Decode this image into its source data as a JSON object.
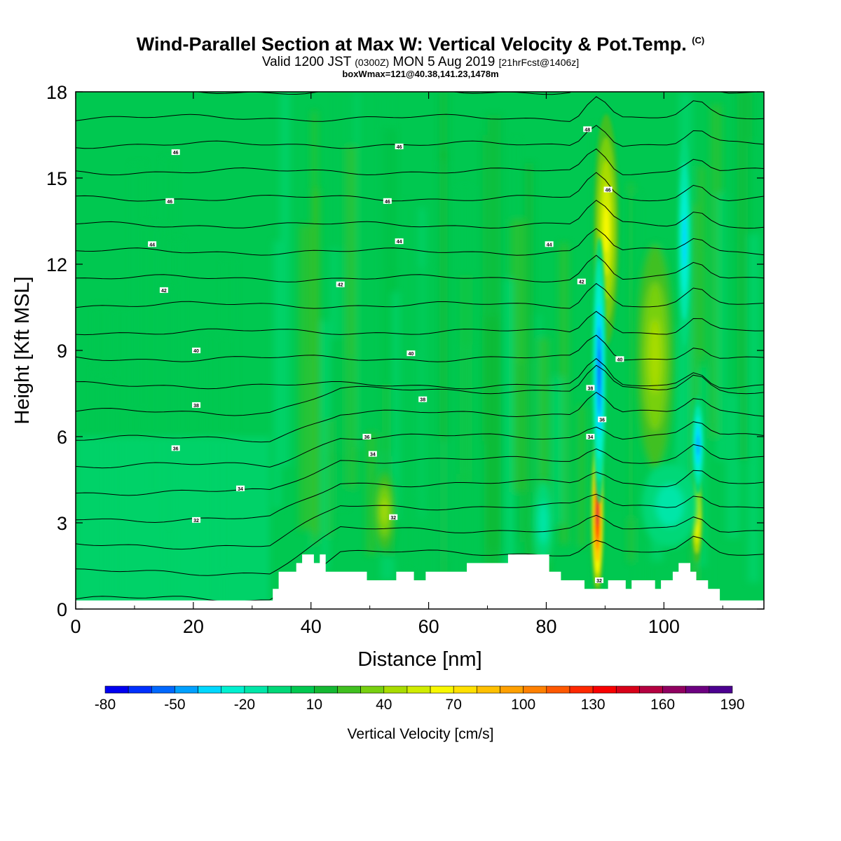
{
  "title": {
    "main": "Wind-Parallel Section at Max W: Vertical Velocity & Pot.Temp.",
    "copyright": "(C)",
    "valid_prefix": "Valid 1200 JST",
    "utc": "(0300Z)",
    "valid_date": "MON 5 Aug 2019",
    "forecast": "[21hrFcst@1406z]",
    "box": "boxWmax=121@40.38,141.23,1478m"
  },
  "chart_data": {
    "type": "heatmap",
    "xlabel": "Distance [nm]",
    "ylabel": "Height [Kft MSL]",
    "xlim": [
      0,
      117
    ],
    "ylim": [
      0,
      18
    ],
    "x_ticks": [
      "0",
      "20",
      "40",
      "60",
      "80",
      "100"
    ],
    "y_ticks": [
      "0",
      "3",
      "6",
      "9",
      "12",
      "15",
      "18"
    ],
    "colorbar": {
      "label": "Vertical Velocity [cm/s]",
      "tick_labels": [
        "-80",
        "-50",
        "-20",
        "10",
        "40",
        "70",
        "100",
        "130",
        "160",
        "190"
      ],
      "levels": [
        -80,
        -70,
        -60,
        -50,
        -40,
        -30,
        -20,
        -10,
        0,
        10,
        20,
        30,
        40,
        50,
        60,
        70,
        80,
        90,
        100,
        110,
        120,
        130,
        140,
        150,
        160,
        170,
        180,
        190
      ],
      "colors": [
        "#0000f0",
        "#0030ff",
        "#0068ff",
        "#00a0ff",
        "#00d8ff",
        "#00f0d0",
        "#00e6a8",
        "#00d878",
        "#00c850",
        "#14b832",
        "#40c020",
        "#78d010",
        "#a8dc00",
        "#d0ec00",
        "#f8f800",
        "#ffe000",
        "#ffc000",
        "#ffa000",
        "#ff8000",
        "#ff5800",
        "#ff2800",
        "#f80000",
        "#d80018",
        "#b40040",
        "#900060",
        "#6c0080",
        "#4c0090"
      ]
    },
    "terrain": [
      [
        0,
        0.3
      ],
      [
        33.5,
        0.3
      ],
      [
        33.5,
        0.7
      ],
      [
        34.5,
        0.7
      ],
      [
        34.5,
        1.3
      ],
      [
        37.5,
        1.3
      ],
      [
        37.5,
        1.6
      ],
      [
        38.5,
        1.6
      ],
      [
        38.5,
        1.9
      ],
      [
        40.5,
        1.9
      ],
      [
        40.5,
        1.6
      ],
      [
        41.5,
        1.6
      ],
      [
        41.5,
        1.9
      ],
      [
        42.5,
        1.9
      ],
      [
        42.5,
        1.3
      ],
      [
        49.5,
        1.3
      ],
      [
        49.5,
        1.0
      ],
      [
        54.5,
        1.0
      ],
      [
        54.5,
        1.3
      ],
      [
        57.5,
        1.3
      ],
      [
        57.5,
        1.0
      ],
      [
        59.5,
        1.0
      ],
      [
        59.5,
        1.3
      ],
      [
        66.5,
        1.3
      ],
      [
        66.5,
        1.6
      ],
      [
        73.5,
        1.6
      ],
      [
        73.5,
        1.9
      ],
      [
        80.5,
        1.9
      ],
      [
        80.5,
        1.3
      ],
      [
        82.5,
        1.3
      ],
      [
        82.5,
        1.0
      ],
      [
        86.5,
        1.0
      ],
      [
        86.5,
        0.7
      ],
      [
        90.5,
        0.7
      ],
      [
        90.5,
        1.0
      ],
      [
        93.5,
        1.0
      ],
      [
        93.5,
        0.7
      ],
      [
        94.5,
        0.7
      ],
      [
        94.5,
        1.0
      ],
      [
        98.5,
        1.0
      ],
      [
        98.5,
        0.7
      ],
      [
        99.5,
        0.7
      ],
      [
        99.5,
        1.0
      ],
      [
        101.5,
        1.0
      ],
      [
        101.5,
        1.3
      ],
      [
        102.5,
        1.3
      ],
      [
        102.5,
        1.6
      ],
      [
        104.5,
        1.6
      ],
      [
        104.5,
        1.3
      ],
      [
        105.5,
        1.3
      ],
      [
        105.5,
        1.0
      ],
      [
        107.5,
        1.0
      ],
      [
        107.5,
        0.7
      ],
      [
        109.5,
        0.7
      ],
      [
        109.5,
        0.3
      ],
      [
        117,
        0.3
      ]
    ],
    "updraft_cores": [
      {
        "x": 88.7,
        "y": 3.3,
        "w_max": 150
      },
      {
        "x": 90.2,
        "y": 13.2,
        "w_max": 60
      },
      {
        "x": 105.6,
        "y": 3.2,
        "w_max": 70
      },
      {
        "x": 98.5,
        "y": 8.8,
        "w_max": 40
      },
      {
        "x": 52.5,
        "y": 3.4,
        "w_max": 40
      }
    ],
    "downdraft_cores": [
      {
        "x": 89.0,
        "y": 8.3,
        "w_min": -60
      },
      {
        "x": 105.8,
        "y": 5.7,
        "w_min": -50
      },
      {
        "x": 103.5,
        "y": 12.8,
        "w_min": -40
      },
      {
        "x": 79.5,
        "y": 3.0,
        "w_min": -20
      }
    ],
    "theta_contours": [
      30,
      31,
      32,
      33,
      34,
      35,
      36,
      37,
      38,
      39,
      40,
      41,
      42,
      43,
      44,
      45,
      46,
      47,
      48,
      49
    ],
    "contour_labels": [
      {
        "text": "46",
        "x": 17,
        "y": 15.9
      },
      {
        "text": "46",
        "x": 16,
        "y": 14.2
      },
      {
        "text": "44",
        "x": 13,
        "y": 12.7
      },
      {
        "text": "42",
        "x": 15,
        "y": 11.1
      },
      {
        "text": "40",
        "x": 20.5,
        "y": 9.0
      },
      {
        "text": "38",
        "x": 20.5,
        "y": 7.1
      },
      {
        "text": "36",
        "x": 17,
        "y": 5.6
      },
      {
        "text": "34",
        "x": 28,
        "y": 4.2
      },
      {
        "text": "32",
        "x": 20.5,
        "y": 3.1
      },
      {
        "text": "46",
        "x": 55,
        "y": 16.1
      },
      {
        "text": "46",
        "x": 53,
        "y": 14.2
      },
      {
        "text": "44",
        "x": 55,
        "y": 12.8
      },
      {
        "text": "42",
        "x": 45,
        "y": 11.3
      },
      {
        "text": "40",
        "x": 57,
        "y": 8.9
      },
      {
        "text": "38",
        "x": 59,
        "y": 7.3
      },
      {
        "text": "36",
        "x": 49.5,
        "y": 6.0
      },
      {
        "text": "34",
        "x": 50.5,
        "y": 5.4
      },
      {
        "text": "32",
        "x": 54,
        "y": 3.2
      },
      {
        "text": "48",
        "x": 87,
        "y": 16.7
      },
      {
        "text": "46",
        "x": 90.5,
        "y": 14.6
      },
      {
        "text": "44",
        "x": 80.5,
        "y": 12.7
      },
      {
        "text": "42",
        "x": 86,
        "y": 11.4
      },
      {
        "text": "40",
        "x": 92.5,
        "y": 8.7
      },
      {
        "text": "38",
        "x": 87.5,
        "y": 7.7
      },
      {
        "text": "36",
        "x": 89.5,
        "y": 6.6
      },
      {
        "text": "34",
        "x": 87.5,
        "y": 6.0
      },
      {
        "text": "32",
        "x": 89,
        "y": 1.0
      }
    ]
  }
}
